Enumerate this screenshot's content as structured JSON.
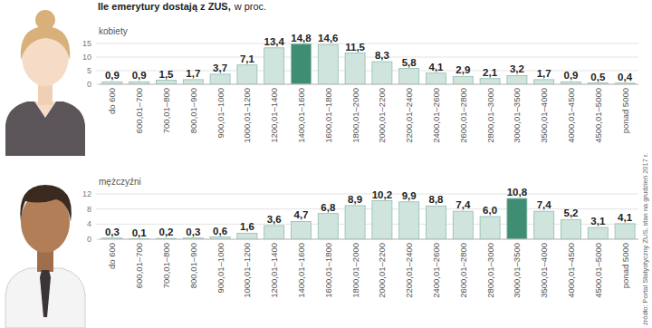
{
  "header": {
    "title": "Ile emerytury dostają z ZUS,",
    "subtitle": "w proc."
  },
  "chart_data": [
    {
      "type": "bar",
      "title": "kobiety",
      "categories": [
        "do 600",
        "600,01–700",
        "700,01–800",
        "800,01–900",
        "900,01–1000",
        "1000,01–1200",
        "1200,01–1400",
        "1400,01–1600",
        "1600,01–1800",
        "1800,01–2000",
        "2000,01–2200",
        "2200,01–2400",
        "2400,01–2600",
        "2600,01–2800",
        "2800,01–3000",
        "3000,01–3500",
        "3500,01–4000",
        "4000,01–4500",
        "4500,01–5000",
        "ponad 5000"
      ],
      "values": [
        0.9,
        0.9,
        1.5,
        1.7,
        3.7,
        7.1,
        13.4,
        14.8,
        14.6,
        11.5,
        8.3,
        5.8,
        4.1,
        2.9,
        2.1,
        3.2,
        1.7,
        0.9,
        0.5,
        0.4
      ],
      "value_labels": [
        "0,9",
        "0,9",
        "1,5",
        "1,7",
        "3,7",
        "7,1",
        "13,4",
        "14,8",
        "14,6",
        "11,5",
        "8,3",
        "5,8",
        "4,1",
        "2,9",
        "2,1",
        "3,2",
        "1,7",
        "0,9",
        "0,5",
        "0,4"
      ],
      "colors": [
        "#cfe4dd",
        "#cfe4dd",
        "#cfe4dd",
        "#cfe4dd",
        "#cfe4dd",
        "#cfe4dd",
        "#cfe4dd",
        "#3f8e74",
        "#cfe4dd",
        "#cfe4dd",
        "#cfe4dd",
        "#cfe4dd",
        "#cfe4dd",
        "#cfe4dd",
        "#cfe4dd",
        "#cfe4dd",
        "#cfe4dd",
        "#cfe4dd",
        "#cfe4dd",
        "#cfe4dd"
      ],
      "ylim": [
        0,
        15
      ],
      "yticks": [
        0,
        5,
        10,
        15
      ],
      "grid": true,
      "data_labels": true
    },
    {
      "type": "bar",
      "title": "mężczyźni",
      "categories": [
        "do 600",
        "600,01–700",
        "700,01–800",
        "800,01–900",
        "900,01–1000",
        "1000,01–1200",
        "1200,01–1400",
        "1400,01–1600",
        "1600,01–1800",
        "1800,01–2000",
        "2000,01–2200",
        "2200,01–2400",
        "2400,01–2600",
        "2600,01–2800",
        "2800,01–3000",
        "3000,01–3500",
        "3500,01–4000",
        "4000,01–4500",
        "4500,01–5000",
        "ponad 5000"
      ],
      "values": [
        0.3,
        0.1,
        0.2,
        0.3,
        0.6,
        1.6,
        3.6,
        4.7,
        6.8,
        8.9,
        10.2,
        9.9,
        8.8,
        7.4,
        6.0,
        10.8,
        7.4,
        5.2,
        3.1,
        4.1
      ],
      "value_labels": [
        "0,3",
        "0,1",
        "0,2",
        "0,3",
        "0,6",
        "1,6",
        "3,6",
        "4,7",
        "6,8",
        "8,9",
        "10,2",
        "9,9",
        "8,8",
        "7,4",
        "6,0",
        "10,8",
        "7,4",
        "5,2",
        "3,1",
        "4,1"
      ],
      "colors": [
        "#cfe4dd",
        "#cfe4dd",
        "#cfe4dd",
        "#cfe4dd",
        "#cfe4dd",
        "#cfe4dd",
        "#cfe4dd",
        "#cfe4dd",
        "#cfe4dd",
        "#cfe4dd",
        "#cfe4dd",
        "#cfe4dd",
        "#cfe4dd",
        "#cfe4dd",
        "#cfe4dd",
        "#3f8e74",
        "#cfe4dd",
        "#cfe4dd",
        "#cfe4dd",
        "#cfe4dd"
      ],
      "ylim": [
        0,
        12
      ],
      "yticks": [
        0,
        4,
        8,
        12
      ],
      "grid": true,
      "data_labels": true
    }
  ],
  "source": "źródło: Portal Statystyczny ZUS, stan na grudzień 2017 r."
}
